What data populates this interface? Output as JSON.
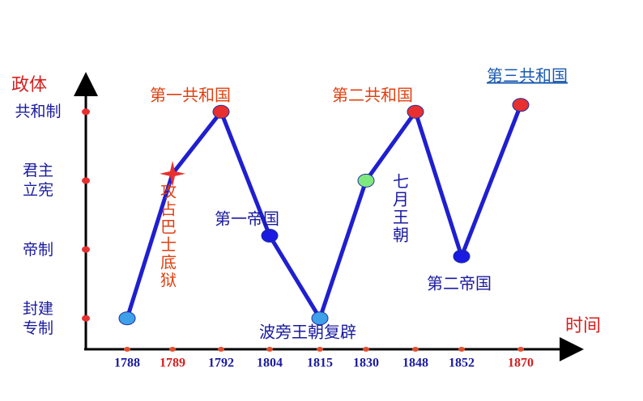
{
  "chart_data": {
    "type": "line",
    "y_label": "政体",
    "x_label": "时间",
    "categories": [
      "1788",
      "1789",
      "1792",
      "1804",
      "1815",
      "1830",
      "1848",
      "1852",
      "1870"
    ],
    "category_colors": [
      "#1a1aa0",
      "#d42020",
      "#1a1aa0",
      "#1a1aa0",
      "#1a1aa0",
      "#1a1aa0",
      "#1a1aa0",
      "#1a1aa0",
      "#d42020"
    ],
    "series": [
      {
        "color": "#1f1fd0",
        "values": [
          1,
          3.1,
          4,
          2.2,
          1,
          3,
          4,
          1.9,
          4.1
        ],
        "point_colors": [
          "#3ea0e8",
          "#e83030",
          "#e83030",
          "#1a1ae0",
          "#3ea0e8",
          "#7ee87e",
          "#e83030",
          "#1a1ae0",
          "#e83030"
        ]
      }
    ],
    "ylim": [
      0.55,
      4.45
    ],
    "yticks": [
      {
        "value": 1,
        "label": "封建专制"
      },
      {
        "value": 2,
        "label": "帝制"
      },
      {
        "value": 3,
        "label": "君主立宪"
      },
      {
        "value": 4,
        "label": "共和制"
      }
    ],
    "annotations": [
      {
        "text": "第一共和国",
        "color": "#e04010"
      },
      {
        "text": "第二共和国",
        "color": "#e04010"
      },
      {
        "text": "第三共和国",
        "color": "#1a5ab0"
      },
      {
        "text": "第一帝国",
        "color": "#1a1aa0"
      },
      {
        "text": "第二帝国",
        "color": "#1a1aa0"
      },
      {
        "text": "波旁王朝复辟",
        "color": "#1a1aa0"
      },
      {
        "text": "七月王朝",
        "color": "#1a1aa0"
      },
      {
        "text": "攻占巴士底狱",
        "color": "#e04010"
      }
    ]
  }
}
